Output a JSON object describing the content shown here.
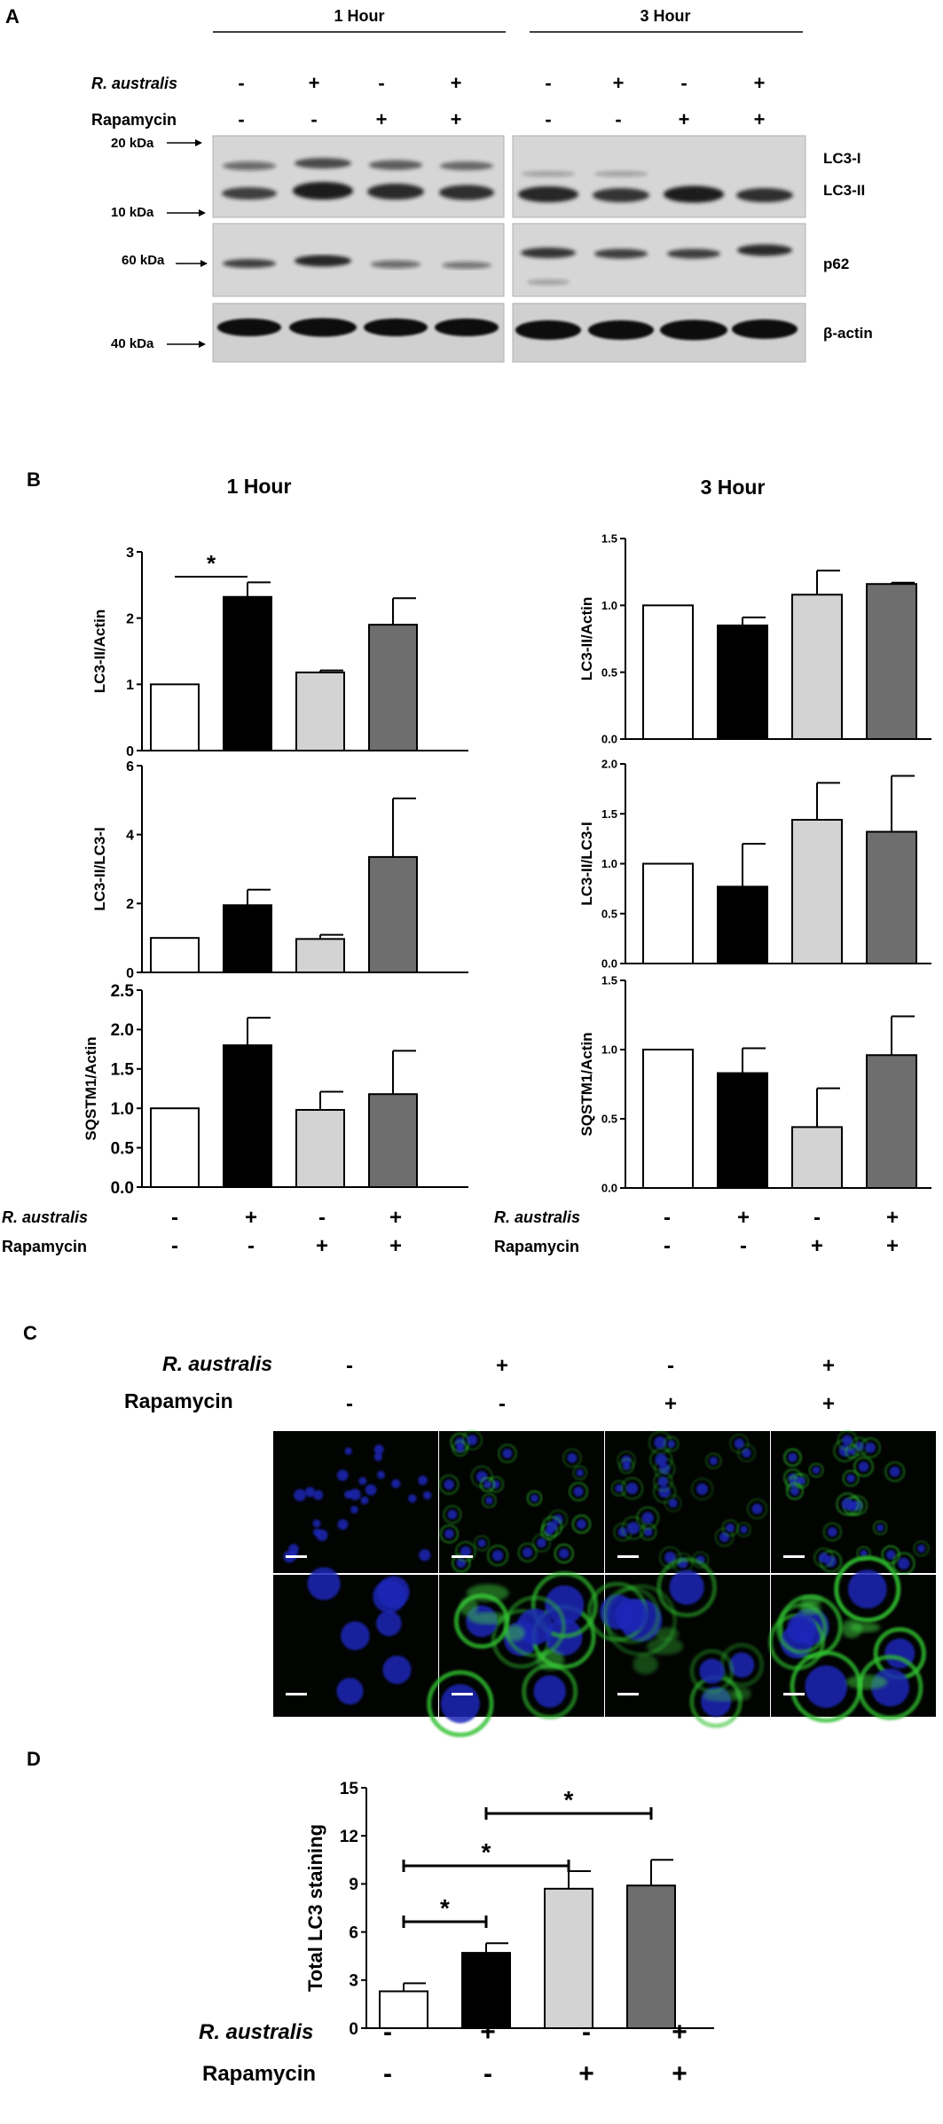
{
  "colors": {
    "white": "#ffffff",
    "black": "#000000",
    "lightgray": "#d3d3d3",
    "darkgray": "#6e6e6e"
  },
  "treatments": {
    "r_label": "R. australis",
    "rapa_label": "Rapamycin",
    "r_signs": [
      "-",
      "+",
      "-",
      "+"
    ],
    "rapa_signs": [
      "-",
      "-",
      "+",
      "+"
    ]
  },
  "panelA": {
    "letter": "A",
    "header_1h": "1 Hour",
    "header_3h": "3 Hour",
    "kda_20": "20 kDa",
    "kda_10": "10 kDa",
    "kda_60": "60 kDa",
    "kda_40": "40 kDa",
    "label_lc3i": "LC3-I",
    "label_lc3ii": "LC3-II",
    "label_p62": "p62",
    "label_actin": "β-actin"
  },
  "panelB": {
    "letter": "B",
    "title_1h": "1 Hour",
    "title_3h": "3 Hour"
  },
  "panelC": {
    "letter": "C"
  },
  "panelD": {
    "letter": "D"
  },
  "chart_data": [
    {
      "id": "b1_lc3ii_actin",
      "type": "bar",
      "title": "1 Hour",
      "ylabel": "LC3-II/Actin",
      "ylim": [
        0,
        3
      ],
      "yticks": [
        "0",
        "1",
        "2",
        "3"
      ],
      "values": [
        1.0,
        2.32,
        1.18,
        1.9
      ],
      "errors": [
        0.0,
        0.22,
        0.03,
        0.4
      ],
      "annotations": [
        {
          "text": "*",
          "from": 0,
          "to": 1
        }
      ]
    },
    {
      "id": "b1_lc3ii_lc3i",
      "type": "bar",
      "ylabel": "LC3-II/LC3-I",
      "ylim": [
        0,
        6
      ],
      "yticks": [
        "0",
        "2",
        "4",
        "6"
      ],
      "values": [
        1.0,
        1.95,
        0.97,
        3.35
      ],
      "errors": [
        0.0,
        0.45,
        0.12,
        1.7
      ],
      "annotations": []
    },
    {
      "id": "b1_sqstm1",
      "type": "bar",
      "ylabel": "SQSTM1/Actin",
      "ylim": [
        0,
        2.5
      ],
      "yticks": [
        "0.0",
        "0.5",
        "1.0",
        "1.5",
        "2.0",
        "2.5"
      ],
      "values": [
        1.0,
        1.8,
        0.98,
        1.18
      ],
      "errors": [
        0.0,
        0.35,
        0.23,
        0.55
      ],
      "annotations": []
    },
    {
      "id": "b3_lc3ii_actin",
      "type": "bar",
      "title": "3 Hour",
      "ylabel": "LC3-II/Actin",
      "ylim": [
        0,
        1.5
      ],
      "yticks": [
        "0.0",
        "0.5",
        "1.0",
        "1.5"
      ],
      "values": [
        1.0,
        0.85,
        1.08,
        1.16
      ],
      "errors": [
        0.0,
        0.06,
        0.18,
        0.01
      ],
      "annotations": []
    },
    {
      "id": "b3_lc3ii_lc3i",
      "type": "bar",
      "ylabel": "LC3-II/LC3-I",
      "ylim": [
        0,
        2.0
      ],
      "yticks": [
        "0.0",
        "0.5",
        "1.0",
        "1.5",
        "2.0"
      ],
      "values": [
        1.0,
        0.77,
        1.44,
        1.32
      ],
      "errors": [
        0.0,
        0.43,
        0.37,
        0.56
      ],
      "annotations": []
    },
    {
      "id": "b3_sqstm1",
      "type": "bar",
      "ylabel": "SQSTM1/Actin",
      "ylim": [
        0,
        1.5
      ],
      "yticks": [
        "0.0",
        "0.5",
        "1.0",
        "1.5"
      ],
      "values": [
        1.0,
        0.83,
        0.44,
        0.96
      ],
      "errors": [
        0.0,
        0.18,
        0.28,
        0.28
      ],
      "annotations": []
    },
    {
      "id": "d_total_lc3",
      "type": "bar",
      "ylabel": "Total LC3 staining",
      "ylim": [
        0,
        15
      ],
      "yticks": [
        "0",
        "3",
        "6",
        "9",
        "12",
        "15"
      ],
      "values": [
        2.3,
        4.7,
        8.7,
        8.9
      ],
      "errors": [
        0.5,
        0.6,
        1.1,
        1.6
      ],
      "annotations": [
        {
          "text": "*",
          "from": 0,
          "to": 1
        },
        {
          "text": "*",
          "from": 0,
          "to": 2
        },
        {
          "text": "*",
          "from": 1,
          "to": 3
        }
      ]
    }
  ]
}
